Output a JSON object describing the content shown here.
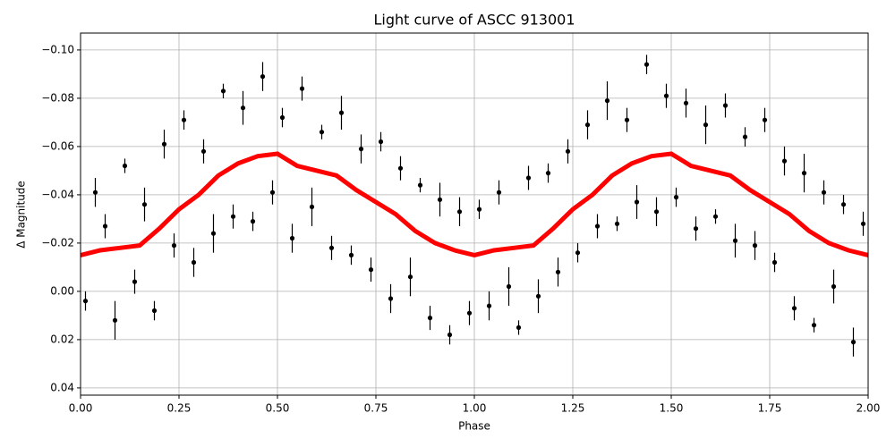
{
  "chart_data": {
    "type": "scatter",
    "title": "Light curve of ASCC 913001",
    "x_label": "Phase",
    "y_label": "Δ Magnitude",
    "xlim": [
      0,
      2
    ],
    "ylim": [
      0.043,
      -0.107
    ],
    "grid": true,
    "xticks": [
      {
        "value": 0,
        "label": "0.00"
      },
      {
        "value": 0.25,
        "label": "0.25"
      },
      {
        "value": 0.5,
        "label": "0.50"
      },
      {
        "value": 0.75,
        "label": "0.75"
      },
      {
        "value": 1,
        "label": "1.00"
      },
      {
        "value": 1.25,
        "label": "1.25"
      },
      {
        "value": 1.5,
        "label": "1.50"
      },
      {
        "value": 1.75,
        "label": "1.75"
      },
      {
        "value": 2,
        "label": "2.00"
      }
    ],
    "yticks": [
      {
        "value": -0.1,
        "label": "−0.10"
      },
      {
        "value": -0.08,
        "label": "−0.08"
      },
      {
        "value": -0.06,
        "label": "−0.06"
      },
      {
        "value": -0.04,
        "label": "−0.04"
      },
      {
        "value": -0.02,
        "label": "−0.02"
      },
      {
        "value": 0,
        "label": "0.00"
      },
      {
        "value": 0.02,
        "label": "0.02"
      },
      {
        "value": 0.04,
        "label": "0.04"
      }
    ],
    "series": [
      {
        "color": "#000000",
        "kind": "errorbar",
        "x": [
          0.0125,
          0.0375,
          0.0625,
          0.0875,
          0.1125,
          0.1375,
          0.1625,
          0.1875,
          0.2125,
          0.2375,
          0.2625,
          0.2875,
          0.3125,
          0.3375,
          0.3625,
          0.3875,
          0.4125,
          0.4375,
          0.4625,
          0.4875,
          0.5125,
          0.5375,
          0.5625,
          0.5875,
          0.6125,
          0.6375,
          0.6625,
          0.6875,
          0.7125,
          0.7375,
          0.7625,
          0.7875,
          0.8125,
          0.8375,
          0.8625,
          0.8875,
          0.9125,
          0.9375,
          0.9625,
          0.9875,
          1.0125,
          1.0375,
          1.0625,
          1.0875,
          1.1125,
          1.1375,
          1.1625,
          1.1875,
          1.2125,
          1.2375,
          1.2625,
          1.2875,
          1.3125,
          1.3375,
          1.3625,
          1.3875,
          1.4125,
          1.4375,
          1.4625,
          1.4875,
          1.5125,
          1.5375,
          1.5625,
          1.5875,
          1.6125,
          1.6375,
          1.6625,
          1.6875,
          1.7125,
          1.7375,
          1.7625,
          1.7875,
          1.8125,
          1.8375,
          1.8625,
          1.8875,
          1.9125,
          1.9375,
          1.9625,
          1.9875
        ],
        "values": [
          0.004,
          -0.041,
          -0.027,
          0.012,
          -0.052,
          -0.004,
          -0.036,
          0.008,
          -0.061,
          -0.019,
          -0.071,
          -0.012,
          -0.058,
          -0.024,
          -0.083,
          -0.031,
          -0.076,
          -0.029,
          -0.089,
          -0.041,
          -0.072,
          -0.022,
          -0.084,
          -0.035,
          -0.066,
          -0.018,
          -0.074,
          -0.015,
          -0.059,
          -0.009,
          -0.062,
          0.003,
          -0.051,
          -0.006,
          -0.044,
          0.011,
          -0.038,
          0.018,
          -0.033,
          0.009,
          -0.034,
          0.006,
          -0.041,
          -0.002,
          0.015,
          -0.047,
          0.002,
          -0.049,
          -0.008,
          -0.058,
          -0.016,
          -0.069,
          -0.027,
          -0.079,
          -0.028,
          -0.071,
          -0.037,
          -0.094,
          -0.033,
          -0.081,
          -0.039,
          -0.078,
          -0.026,
          -0.069,
          -0.031,
          -0.077,
          -0.021,
          -0.064,
          -0.019,
          -0.071,
          -0.012,
          -0.054,
          0.007,
          -0.049,
          0.014,
          -0.041,
          -0.002,
          -0.036,
          0.021,
          -0.028
        ],
        "errors": [
          0.004,
          0.006,
          0.005,
          0.008,
          0.003,
          0.005,
          0.007,
          0.004,
          0.006,
          0.005,
          0.004,
          0.006,
          0.005,
          0.008,
          0.003,
          0.005,
          0.007,
          0.004,
          0.006,
          0.005,
          0.004,
          0.006,
          0.005,
          0.008,
          0.003,
          0.005,
          0.007,
          0.004,
          0.006,
          0.005,
          0.004,
          0.006,
          0.005,
          0.008,
          0.003,
          0.005,
          0.007,
          0.004,
          0.006,
          0.005,
          0.004,
          0.006,
          0.005,
          0.008,
          0.003,
          0.005,
          0.007,
          0.004,
          0.006,
          0.005,
          0.004,
          0.006,
          0.005,
          0.008,
          0.003,
          0.005,
          0.007,
          0.004,
          0.006,
          0.005,
          0.004,
          0.006,
          0.005,
          0.008,
          0.003,
          0.005,
          0.007,
          0.004,
          0.006,
          0.005,
          0.004,
          0.006,
          0.005,
          0.008,
          0.003,
          0.005,
          0.007,
          0.004,
          0.006,
          0.005
        ]
      },
      {
        "color": "#ff0000",
        "kind": "line",
        "x": [
          0,
          0.05,
          0.1,
          0.15,
          0.2,
          0.25,
          0.3,
          0.35,
          0.4,
          0.45,
          0.5,
          0.55,
          0.6,
          0.65,
          0.7,
          0.75,
          0.8,
          0.85,
          0.9,
          0.95,
          1,
          1.05,
          1.1,
          1.15,
          1.2,
          1.25,
          1.3,
          1.35,
          1.4,
          1.45,
          1.5,
          1.55,
          1.6,
          1.65,
          1.7,
          1.75,
          1.8,
          1.85,
          1.9,
          1.95,
          2
        ],
        "values": [
          -0.015,
          -0.017,
          -0.018,
          -0.019,
          -0.026,
          -0.034,
          -0.04,
          -0.048,
          -0.053,
          -0.056,
          -0.057,
          -0.052,
          -0.05,
          -0.048,
          -0.042,
          -0.037,
          -0.032,
          -0.025,
          -0.02,
          -0.017,
          -0.015,
          -0.017,
          -0.018,
          -0.019,
          -0.026,
          -0.034,
          -0.04,
          -0.048,
          -0.053,
          -0.056,
          -0.057,
          -0.052,
          -0.05,
          -0.048,
          -0.042,
          -0.037,
          -0.032,
          -0.025,
          -0.02,
          -0.017,
          -0.015
        ]
      }
    ]
  }
}
